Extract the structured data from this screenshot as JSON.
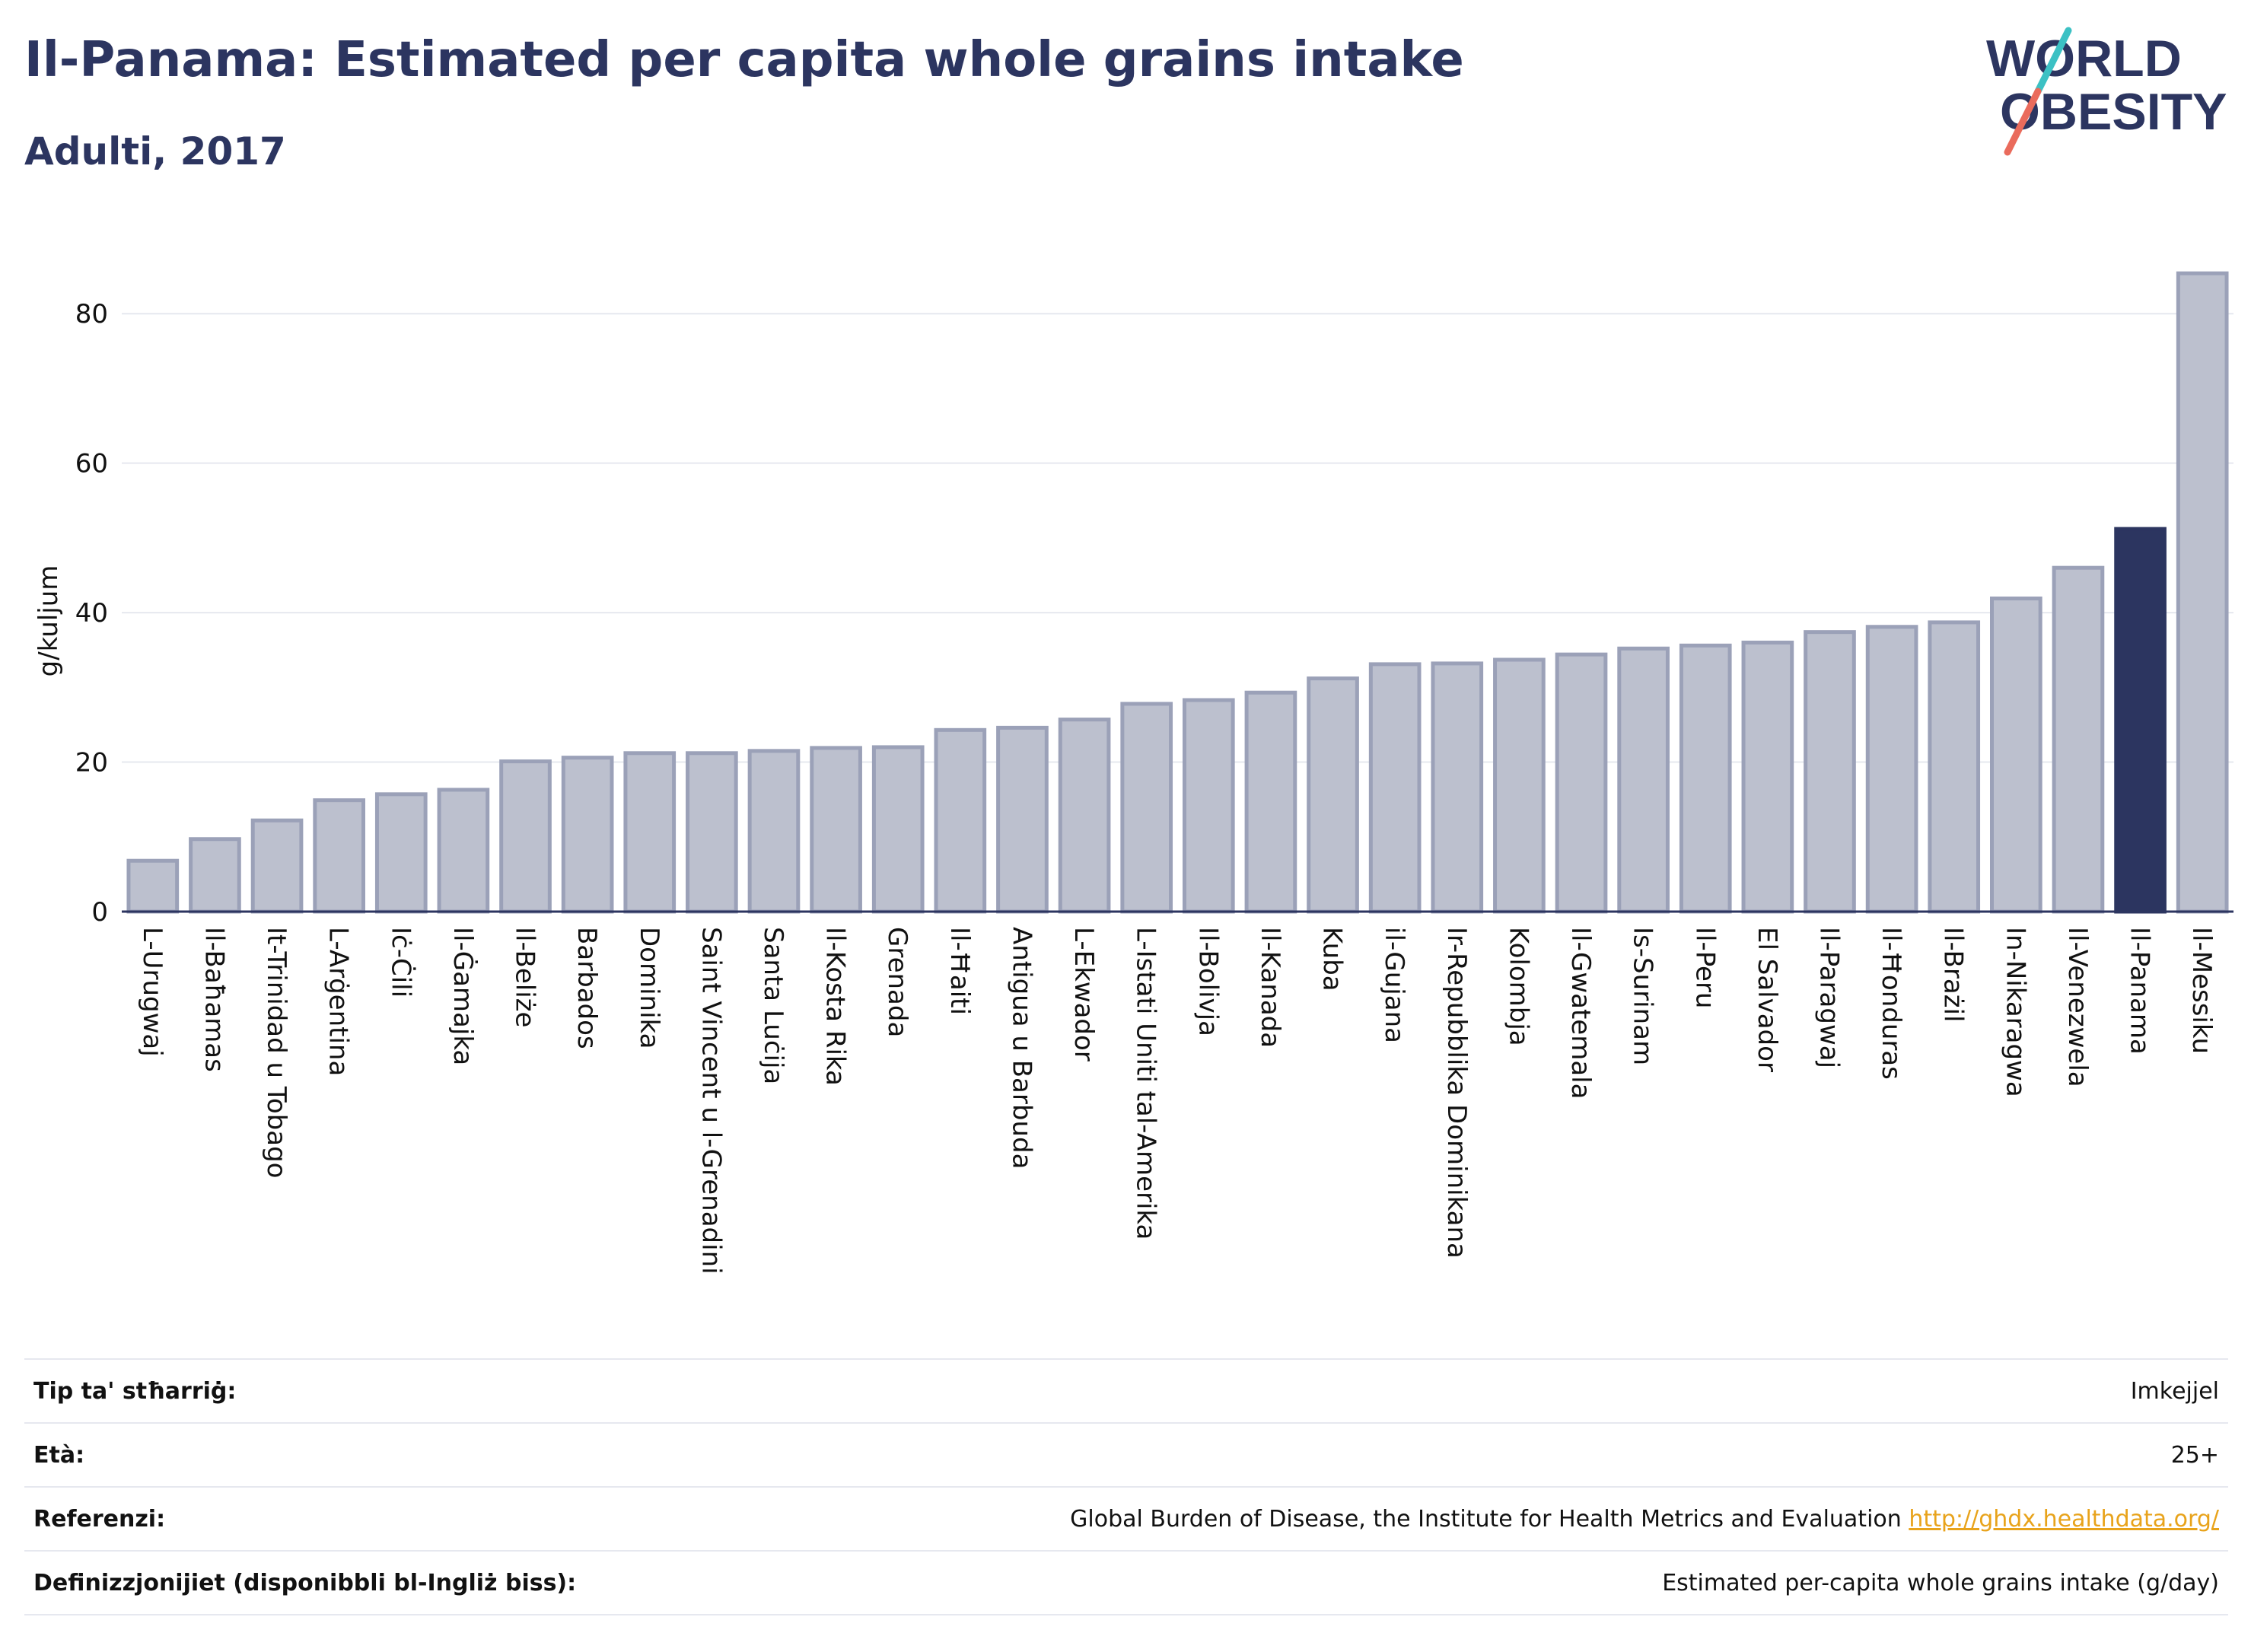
{
  "header": {
    "title": "Il-Panama: Estimated per capita whole grains intake",
    "subtitle": "Adulti, 2017"
  },
  "logo": {
    "line1": "WORLD",
    "line2": "OBESITY"
  },
  "colors": {
    "highlight": "#2c3560",
    "bar_fill": "#bcc0ce",
    "bar_stroke": "#9ba1b8",
    "text": "#2c3560",
    "grid": "#e6e8ef",
    "logo_teal": "#3cc1c4",
    "logo_coral": "#ea6b5c",
    "link": "#e8a31b"
  },
  "chart_data": {
    "type": "bar",
    "ylabel": "g/kuljum",
    "ylim": [
      0,
      90
    ],
    "yticks": [
      0,
      20,
      40,
      60,
      80
    ],
    "grid": true,
    "highlight": "Il-Panama",
    "categories": [
      "L-Urugwaj",
      "Il-Baħamas",
      "It-Trinidad u Tobago",
      "L-Arġentina",
      "Iċ-Ċili",
      "Il-Ġamajka",
      "Il-Beliże",
      "Barbados",
      "Dominika",
      "Saint Vincent u l-Grenadini",
      "Santa Luċija",
      "Il-Kosta Rika",
      "Grenada",
      "Il-Ħaiti",
      "Antigua u Barbuda",
      "L-Ekwador",
      "L-Istati Uniti tal-Amerika",
      "Il-Bolivja",
      "Il-Kanada",
      "Kuba",
      "il-Gujana",
      "Ir-Repubblika Dominikana",
      "Kolombja",
      "Il-Gwatemala",
      "Is-Surinam",
      "Il-Peru",
      "El Salvador",
      "Il-Paragwaj",
      "Il-Ħonduras",
      "Il-Brażil",
      "In-Nikaragwa",
      "Il-Venezwela",
      "Il-Panama",
      "Il-Messiku"
    ],
    "values": [
      6.8,
      9.7,
      12.2,
      14.9,
      15.7,
      16.3,
      20.1,
      20.6,
      21.2,
      21.2,
      21.5,
      21.9,
      22.0,
      24.3,
      24.6,
      25.7,
      27.8,
      28.3,
      29.3,
      31.2,
      33.1,
      33.2,
      33.7,
      34.4,
      35.2,
      35.6,
      36.0,
      37.4,
      38.1,
      38.7,
      41.9,
      46.0,
      51.2,
      85.4
    ]
  },
  "footer": {
    "rows": [
      {
        "label": "Tip ta' stħarriġ:",
        "value": "Imkejjel"
      },
      {
        "label": "Età:",
        "value": "25+"
      },
      {
        "label": "Referenzi:",
        "value": "Global Burden of Disease, the Institute for Health Metrics and Evaluation ",
        "link": "http://ghdx.healthdata.org/"
      },
      {
        "label": "Definizzjonijiet (disponibbli bl-Ingliż biss):",
        "value": "Estimated per-capita whole grains intake (g/day)"
      }
    ]
  }
}
